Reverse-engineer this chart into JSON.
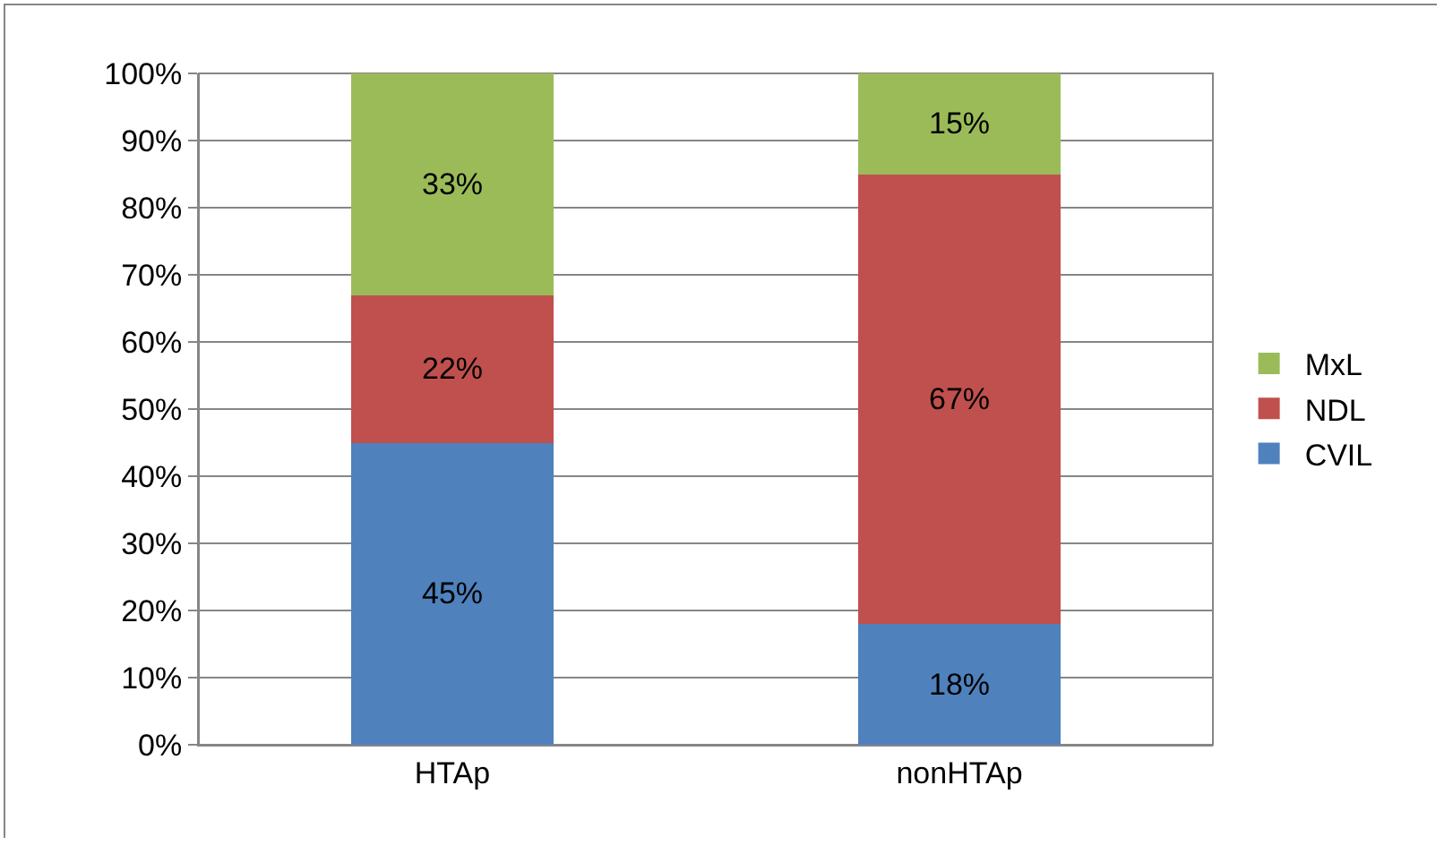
{
  "chart_data": {
    "type": "bar",
    "stacked": true,
    "categories": [
      "HTAp",
      "nonHTAp"
    ],
    "series": [
      {
        "name": "CVIL",
        "color": "#4f81bd",
        "values": [
          45,
          18
        ],
        "value_labels": [
          "45%",
          "18%"
        ]
      },
      {
        "name": "NDL",
        "color": "#c0504d",
        "values": [
          22,
          67
        ],
        "value_labels": [
          "22%",
          "67%"
        ]
      },
      {
        "name": "MxL",
        "color": "#9bbb59",
        "values": [
          33,
          15
        ],
        "value_labels": [
          "33%",
          "15%"
        ]
      }
    ],
    "ylim": [
      0,
      100
    ],
    "yticks": [
      {
        "value": 0,
        "label": "0%"
      },
      {
        "value": 10,
        "label": "10%"
      },
      {
        "value": 20,
        "label": "20%"
      },
      {
        "value": 30,
        "label": "30%"
      },
      {
        "value": 40,
        "label": "40%"
      },
      {
        "value": 50,
        "label": "50%"
      },
      {
        "value": 60,
        "label": "60%"
      },
      {
        "value": 70,
        "label": "70%"
      },
      {
        "value": 80,
        "label": "80%"
      },
      {
        "value": 90,
        "label": "90%"
      },
      {
        "value": 100,
        "label": "100%"
      }
    ],
    "grid": "y",
    "legend": "right"
  }
}
